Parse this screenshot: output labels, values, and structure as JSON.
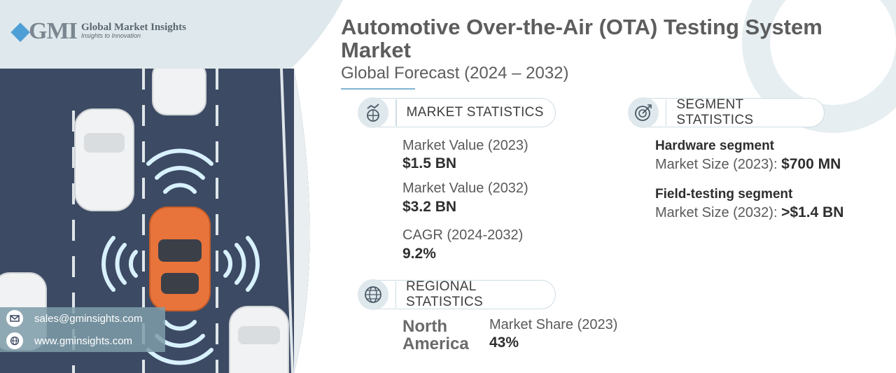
{
  "brand": {
    "logo_mark": "GMI",
    "name": "Global Market Insights",
    "tagline": "Insights to Innovation"
  },
  "header": {
    "title": "Automotive Over-the-Air (OTA) Testing System Market",
    "subtitle": "Global Forecast (2024 – 2032)"
  },
  "market_statistics": {
    "heading": "MARKET STATISTICS",
    "icon": "chart-globe-icon",
    "items": [
      {
        "label": "Market Value (2023)",
        "value": "$1.5 BN"
      },
      {
        "label": "Market Value (2032)",
        "value": "$3.2 BN"
      },
      {
        "label": "CAGR (2024-2032)",
        "value": "9.2%"
      }
    ]
  },
  "segment_statistics": {
    "heading": "SEGMENT STATISTICS",
    "icon": "target-chart-icon",
    "items": [
      {
        "name": "Hardware segment",
        "label": "Market Size (2023):",
        "value": "$700 MN"
      },
      {
        "name": "Field-testing segment",
        "label": "Market Size (2032):",
        "value": ">$1.4 BN"
      }
    ]
  },
  "regional_statistics": {
    "heading": "REGIONAL STATISTICS",
    "icon": "globe-icon",
    "region_line1": "North",
    "region_line2": "America",
    "share_label": "Market Share (2023)",
    "share_value": "43%"
  },
  "contact": {
    "email": "sales@gminsights.com",
    "website": "www.gminsights.com"
  },
  "colors": {
    "accent": "#4e9fd6",
    "road": "#3d4a63",
    "car_highlight": "#e8743b",
    "panel_bg": "#dfe8ec",
    "signal": "#c9ecff"
  }
}
